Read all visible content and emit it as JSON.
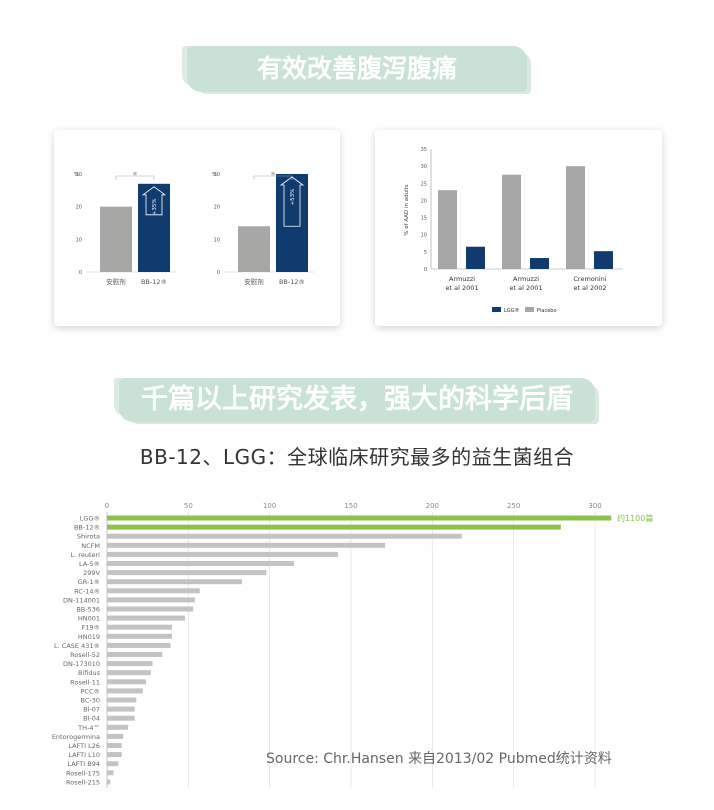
{
  "banner_top": "有效改善腹泻腹痛",
  "banner_mid": "千篇以上研究发表，强大的科学后盾",
  "subtitle": "BB-12、LGG：全球临床研究最多的益生菌组合",
  "source": "Source: Chr.Hansen 来自2013/02 Pubmed统计资料",
  "colors": {
    "navy": "#0f3b6e",
    "gray": "#a7a8a6",
    "green": "#8bc24b",
    "bar_gray": "#c3c3c3",
    "banner": "#c9e2d6"
  },
  "chart_data": [
    {
      "type": "bar",
      "ylabel": "%",
      "ylim": [
        0,
        30
      ],
      "yticks": [
        "0",
        "10",
        "20",
        "30"
      ],
      "categories": [
        "安慰剂",
        "BB-12®"
      ],
      "values": [
        20,
        27
      ],
      "annotation": "+35%",
      "significance": "*"
    },
    {
      "type": "bar",
      "ylabel": "%",
      "ylim": [
        0,
        30
      ],
      "yticks": [
        "0",
        "10",
        "20",
        "30"
      ],
      "categories": [
        "安慰剂",
        "BB-12®"
      ],
      "values": [
        14,
        30
      ],
      "annotation": "+53%",
      "significance": "*"
    },
    {
      "type": "bar",
      "ylabel": "% of AAD in adults",
      "ylim": [
        0,
        35
      ],
      "yticks": [
        "0",
        "5",
        "10",
        "15",
        "20",
        "25",
        "30",
        "35"
      ],
      "categories": [
        "Armuzzi et al 2001",
        "Armuzzi et al 2001",
        "Cremonini et al 2002"
      ],
      "series": [
        {
          "name": "LGG®",
          "values": [
            6.5,
            3.2,
            5.2
          ]
        },
        {
          "name": "Placebo",
          "values": [
            23,
            27.5,
            30
          ]
        }
      ]
    },
    {
      "type": "bar",
      "orientation": "horizontal",
      "xlim": [
        0,
        300
      ],
      "xticks": [
        "0",
        "50",
        "100",
        "150",
        "200",
        "250",
        "300"
      ],
      "categories": [
        "LGG®",
        "BB-12®",
        "Shirota",
        "NCFM",
        "L. reuteri",
        "LA-5®",
        "299V",
        "GR-1®",
        "RC-14®",
        "DN-114001",
        "BB-536",
        "HN001",
        "F19®",
        "HN019",
        "L. CASE 431®",
        "Rosell-52",
        "DN-173010",
        "Bifidus",
        "Rosell-11",
        "PCC®",
        "BC-30",
        "Bl-07",
        "Bl-04",
        "TH-4™",
        "Entorogermina",
        "LAFTI L26",
        "LAFTI L10",
        "LAFTI B94",
        "Rosell-175",
        "Rosell-215"
      ],
      "values": [
        310,
        279,
        218,
        171,
        142,
        115,
        98,
        83,
        57,
        54,
        53,
        48,
        40,
        40,
        39,
        34,
        28,
        27,
        24,
        22,
        18,
        17,
        17,
        13,
        10,
        9,
        9,
        7,
        4,
        2
      ],
      "highlight_count": 2,
      "annotation": "约1100篇"
    }
  ]
}
